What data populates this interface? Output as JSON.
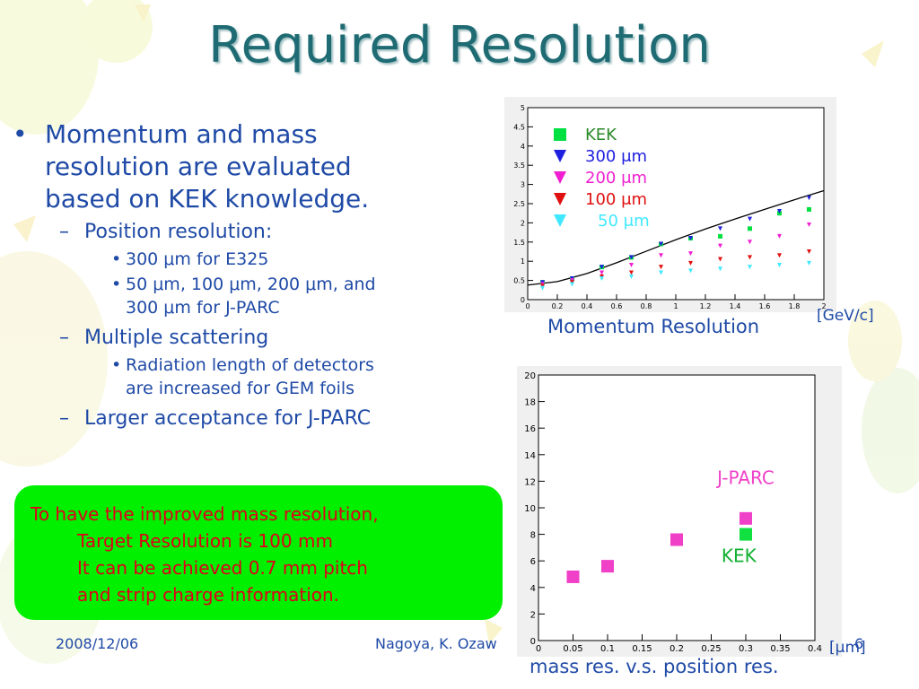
{
  "slide": {
    "title": "Required Resolution",
    "bullets": {
      "b1": "Momentum and mass resolution are evaluated based on KEK knowledge.",
      "b1_line1": "Momentum and mass",
      "b1_line2": "resolution are evaluated",
      "b1_line3": "based on KEK knowledge.",
      "s1": "Position resolution:",
      "s1_1": "300 μm for E325",
      "s1_2_line1": "50 μm, 100 μm, 200 μm, and",
      "s1_2_line2": "300 μm for J-PARC",
      "s2": "Multiple scattering",
      "s2_1_line1": "Radiation length of detectors",
      "s2_1_line2": "are increased for GEM foils",
      "s3": "Larger acceptance for J-PARC"
    },
    "callout": {
      "line1": "To have the improved mass resolution,",
      "line2": "Target Resolution is 100 mm",
      "line3": "It can be achieved 0.7 mm pitch",
      "line4": "and strip charge information."
    },
    "footer": {
      "date": "2008/12/06",
      "author": "Nagoya, K. Ozaw",
      "page": "6"
    },
    "colors": {
      "title": "#1f6b73",
      "text": "#1f4aa6",
      "callout_bg": "#00f000",
      "callout_text": "#e0001a"
    }
  },
  "chart_data": [
    {
      "type": "scatter",
      "caption": "Momentum Resolution",
      "xunit": "[GeV/c]",
      "xlim": [
        0,
        2.0
      ],
      "ylim": [
        0,
        5
      ],
      "xticks": [
        "0",
        "0.2",
        "0.4",
        "0.6",
        "0.8",
        "1",
        "1.2",
        "1.4",
        "1.6",
        "1.8",
        "2"
      ],
      "xtick_values": [
        0,
        0.2,
        0.4,
        0.6,
        0.8,
        1,
        1.2,
        1.4,
        1.6,
        1.8,
        2
      ],
      "yticks": [
        "0",
        "0.5",
        "1",
        "1.5",
        "2",
        "2.5",
        "3",
        "3.5",
        "4",
        "4.5",
        "5"
      ],
      "ytick_values": [
        0,
        0.5,
        1,
        1.5,
        2,
        2.5,
        3,
        3.5,
        4,
        4.5,
        5
      ],
      "legend_position": "top-left",
      "x": [
        0.1,
        0.3,
        0.5,
        0.7,
        0.9,
        1.1,
        1.3,
        1.5,
        1.7,
        1.9
      ],
      "series": [
        {
          "name": "KEK",
          "marker": "square",
          "color": "#00e040",
          "values": [
            0.45,
            0.55,
            0.85,
            1.1,
            1.45,
            1.6,
            1.65,
            1.85,
            2.25,
            2.35
          ]
        },
        {
          "name": "300 μm",
          "marker": "triangle-down",
          "color": "#2020e0",
          "values": [
            0.45,
            0.55,
            0.85,
            1.1,
            1.45,
            1.6,
            1.85,
            2.1,
            2.3,
            2.65
          ]
        },
        {
          "name": "200 μm",
          "marker": "triangle-down",
          "color": "#f020d0",
          "values": [
            0.4,
            0.5,
            0.7,
            0.9,
            1.15,
            1.2,
            1.4,
            1.5,
            1.65,
            1.95
          ]
        },
        {
          "name": "100 μm",
          "marker": "triangle-down",
          "color": "#e01010",
          "values": [
            0.35,
            0.45,
            0.6,
            0.7,
            0.85,
            0.95,
            1.05,
            1.1,
            1.15,
            1.25
          ]
        },
        {
          "name": "50 μm",
          "marker": "triangle-down",
          "color": "#40e8ff",
          "values": [
            0.3,
            0.4,
            0.55,
            0.6,
            0.7,
            0.75,
            0.8,
            0.85,
            0.9,
            0.95
          ]
        }
      ],
      "fit_curve": {
        "x": [
          0,
          0.2,
          0.4,
          0.6,
          0.8,
          1.0,
          1.2,
          1.4,
          1.6,
          1.8,
          2.0
        ],
        "y": [
          0.38,
          0.47,
          0.68,
          0.96,
          1.26,
          1.56,
          1.84,
          2.1,
          2.35,
          2.6,
          2.84
        ]
      }
    },
    {
      "type": "scatter",
      "caption": "mass res. v.s. position res.",
      "xunit": "[μm]",
      "xlim": [
        0,
        0.4
      ],
      "ylim": [
        0,
        20
      ],
      "xticks": [
        "0",
        "0.05",
        "0.1",
        "0.15",
        "0.2",
        "0.25",
        "0.3",
        "0.35",
        "0.4"
      ],
      "xtick_values": [
        0,
        0.05,
        0.1,
        0.15,
        0.2,
        0.25,
        0.3,
        0.35,
        0.4
      ],
      "yticks": [
        "0",
        "2",
        "4",
        "6",
        "8",
        "10",
        "12",
        "14",
        "16",
        "18",
        "20"
      ],
      "ytick_values": [
        0,
        2,
        4,
        6,
        8,
        10,
        12,
        14,
        16,
        18,
        20
      ],
      "series": [
        {
          "name": "J-PARC",
          "marker": "square",
          "color": "#f040c8",
          "x": [
            0.05,
            0.1,
            0.2,
            0.3
          ],
          "values": [
            4.8,
            5.6,
            7.6,
            9.2
          ]
        },
        {
          "name": "KEK",
          "marker": "square",
          "color": "#10e040",
          "x": [
            0.3
          ],
          "values": [
            8.0
          ]
        }
      ]
    }
  ]
}
